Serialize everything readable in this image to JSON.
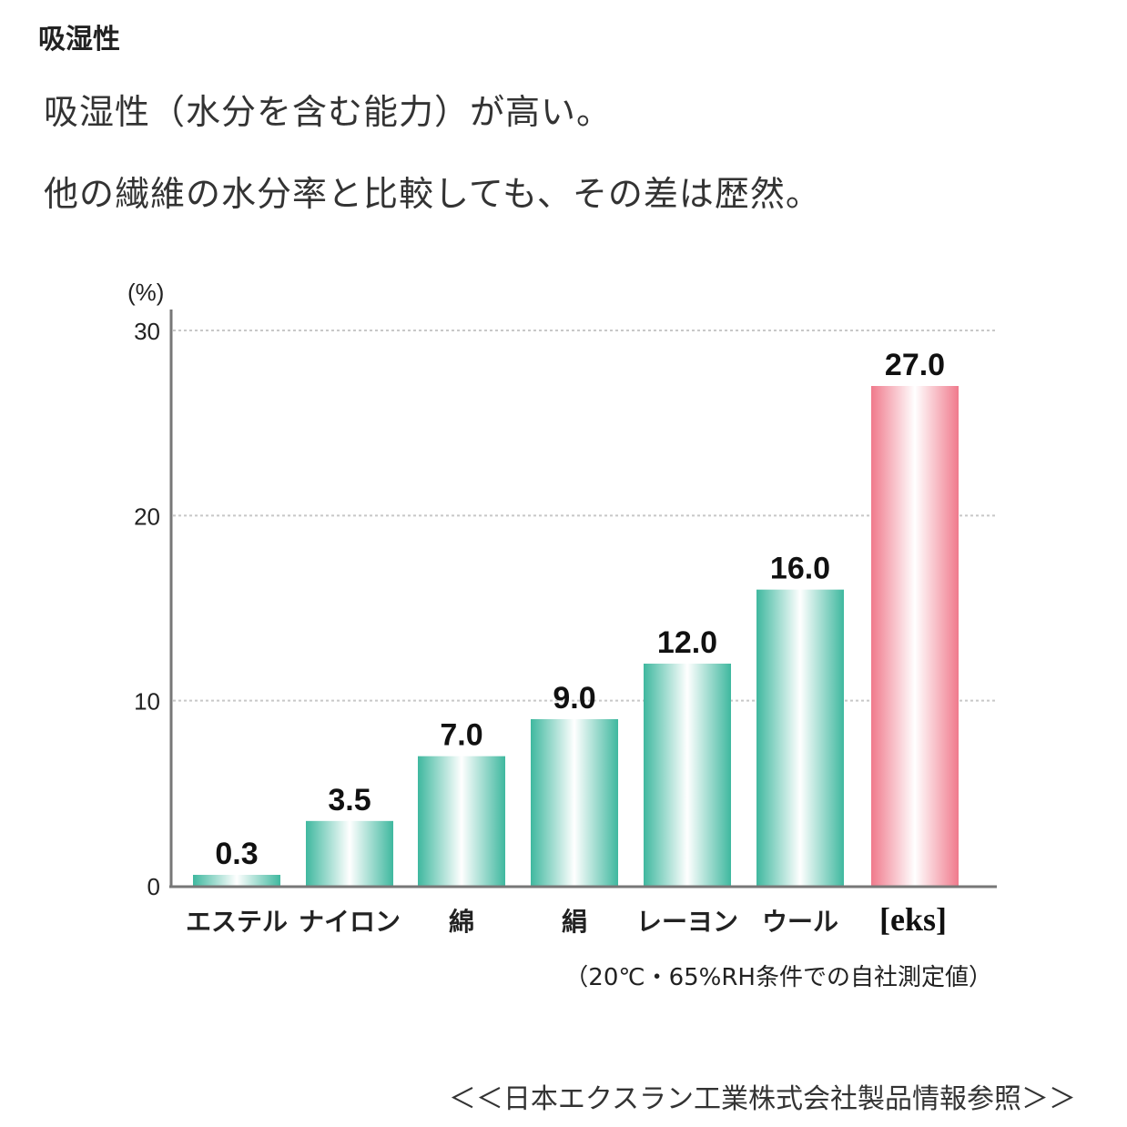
{
  "header": {
    "title": "吸湿性",
    "line1": "吸湿性（水分を含む能力）が高い。",
    "line2": "他の繊維の水分率と比較しても、その差は歴然。"
  },
  "footer": {
    "source": "＜＜日本エクスラン工業株式会社製品情報参照＞＞"
  },
  "colors": {
    "teal": "#3fb89f",
    "pink": "#f07a8c",
    "grid": "#cccccc",
    "axis": "#777777"
  },
  "chart_data": {
    "type": "bar",
    "categories": [
      "エステル",
      "ナイロン",
      "綿",
      "絹",
      "レーヨン",
      "ウール",
      "[eks]"
    ],
    "values": [
      0.3,
      3.5,
      7.0,
      9.0,
      12.0,
      16.0,
      27.0
    ],
    "value_labels": [
      "0.3",
      "3.5",
      "7.0",
      "9.0",
      "12.0",
      "16.0",
      "27.0"
    ],
    "highlight_index": 6,
    "ylabel": "(%)",
    "ylim": [
      0,
      30
    ],
    "yticks": [
      "0",
      "10",
      "20",
      "30"
    ],
    "grid": true,
    "note": "（20℃・65%RH条件での自社測定値）"
  }
}
